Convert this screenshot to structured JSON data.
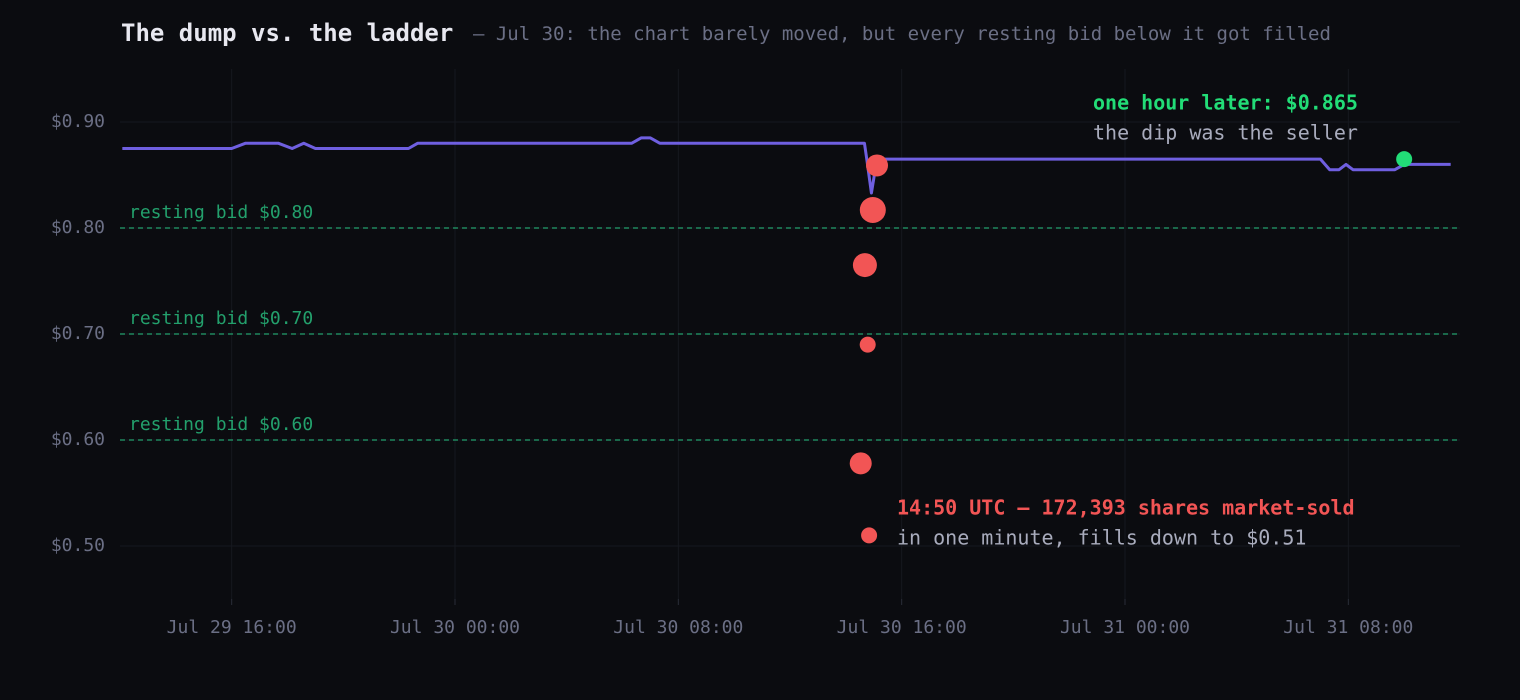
{
  "chart_data": {
    "type": "line",
    "title": "The dump vs. the ladder",
    "subtitle": "— Jul 30: the chart barely moved, but every resting bid below it got filled",
    "xlim": [
      "Jul 29 12:00",
      "Jul 31 12:00"
    ],
    "xticks": [
      "Jul 29 16:00",
      "Jul 30 00:00",
      "Jul 30 08:00",
      "Jul 30 16:00",
      "Jul 31 00:00",
      "Jul 31 08:00"
    ],
    "ylim": [
      0.45,
      0.95
    ],
    "yticks": [
      {
        "value": 0.5,
        "label": "$0.50"
      },
      {
        "value": 0.6,
        "label": "$0.60"
      },
      {
        "value": 0.7,
        "label": "$0.70"
      },
      {
        "value": 0.8,
        "label": "$0.80"
      },
      {
        "value": 0.9,
        "label": "$0.90"
      }
    ],
    "grid": true,
    "series": [
      {
        "type": "line",
        "color": "#6f5fe0",
        "x": [
          "Jul 29 12:05",
          "Jul 29 16:00",
          "Jul 29 16:30",
          "Jul 29 17:40",
          "Jul 29 18:10",
          "Jul 29 18:35",
          "Jul 29 19:00",
          "Jul 29 22:20",
          "Jul 29 22:40",
          "Jul 30 06:20",
          "Jul 30 06:40",
          "Jul 30 07:00",
          "Jul 30 07:20",
          "Jul 30 14:40",
          "Jul 30 14:45",
          "Jul 30 14:55",
          "Jul 30 15:05",
          "Jul 30 15:20",
          "Jul 31 07:00",
          "Jul 31 07:20",
          "Jul 31 07:40",
          "Jul 31 07:55",
          "Jul 31 08:10",
          "Jul 31 09:40",
          "Jul 31 10:00",
          "Jul 31 11:40"
        ],
        "values": [
          0.875,
          0.875,
          0.88,
          0.88,
          0.875,
          0.88,
          0.875,
          0.875,
          0.88,
          0.88,
          0.885,
          0.885,
          0.88,
          0.88,
          0.865,
          0.833,
          0.86,
          0.865,
          0.865,
          0.855,
          0.855,
          0.86,
          0.855,
          0.855,
          0.86,
          0.86
        ]
      },
      {
        "type": "scatter",
        "color": "#f25555",
        "x": [
          "Jul 30 15:07",
          "Jul 30 14:58",
          "Jul 30 14:41",
          "Jul 30 14:47",
          "Jul 30 14:32",
          "Jul 30 14:50"
        ],
        "values": [
          0.859,
          0.817,
          0.765,
          0.69,
          0.578,
          0.51
        ],
        "sizes": [
          11,
          13,
          12,
          8,
          11,
          8
        ]
      },
      {
        "type": "scatter",
        "color": "#22dd77",
        "x": [
          "Jul 31 10:00"
        ],
        "values": [
          0.865
        ],
        "sizes": [
          8
        ]
      }
    ],
    "hlines": [
      {
        "value": 0.8,
        "label": "resting bid $0.80"
      },
      {
        "value": 0.7,
        "label": "resting bid $0.70"
      },
      {
        "value": 0.6,
        "label": "resting bid $0.60"
      }
    ],
    "hline_color": "#23a06c",
    "annotations": [
      {
        "title": "one hour later: $0.865",
        "text": "the dip was the seller",
        "color": "#22dd77"
      },
      {
        "title": "14:50 UTC — 172,393 shares market-sold",
        "text": "in one minute, fills down to $0.51",
        "color": "#f25555"
      }
    ]
  }
}
